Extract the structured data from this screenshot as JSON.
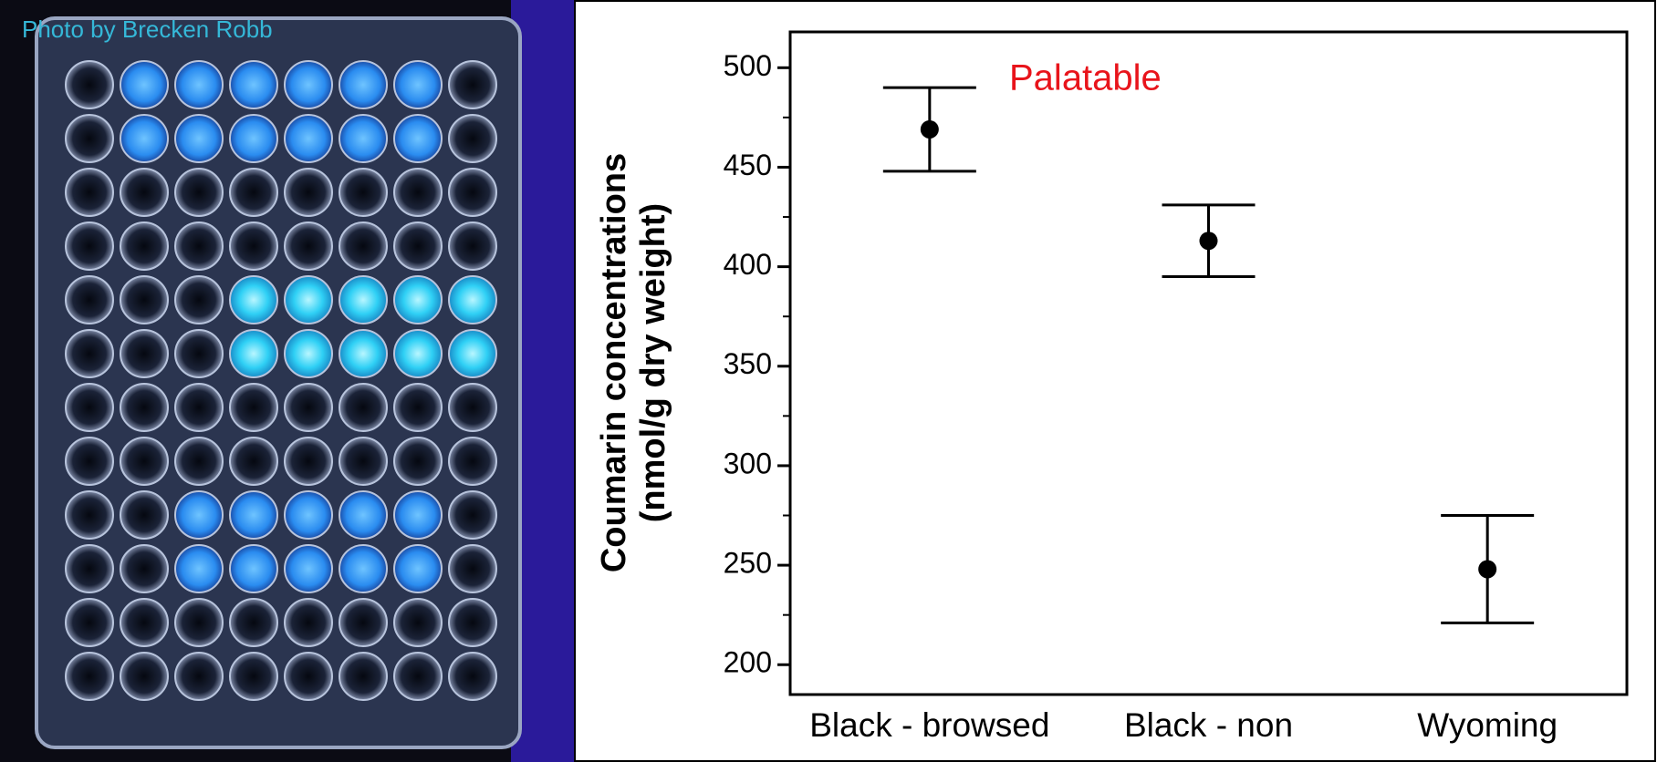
{
  "photo_credit": "Photo by Brecken Robb",
  "chart_data": {
    "type": "errorbar",
    "annotation": "Palatable",
    "annotation_color": "#e8141b",
    "ylabel": [
      "Coumarin concentrations",
      "(nmol/g dry weight)"
    ],
    "categories": [
      "Black - browsed",
      "Black - non",
      "Wyoming"
    ],
    "values": [
      469,
      413,
      248
    ],
    "errors": [
      21,
      18,
      27
    ],
    "color": "#000000",
    "ylim": [
      185,
      518
    ],
    "yticks": [
      200,
      250,
      300,
      350,
      400,
      450,
      500
    ],
    "yminorticks": [
      225,
      275,
      325,
      375,
      425,
      475
    ]
  }
}
